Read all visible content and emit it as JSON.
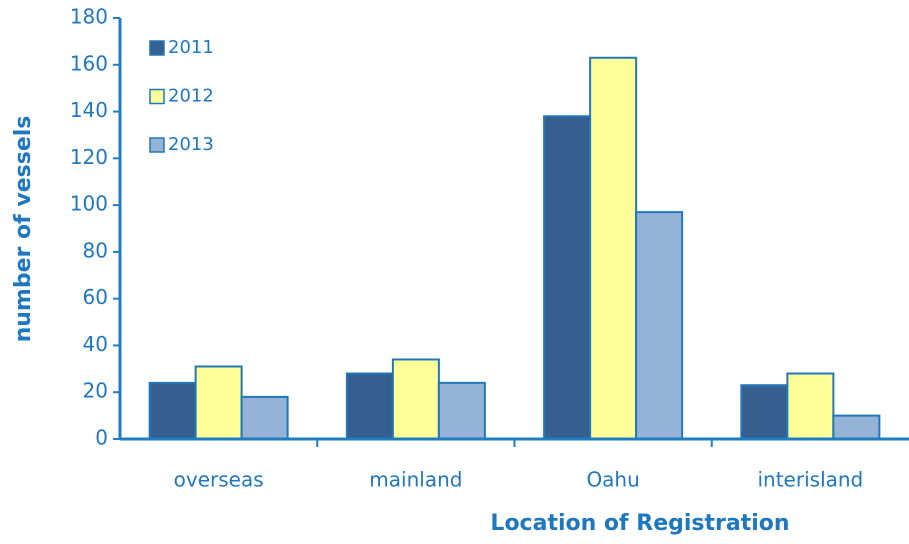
{
  "chart_data": {
    "type": "bar",
    "xlabel": "Location of Registration",
    "ylabel": "number of vessels",
    "categories": [
      "overseas",
      "mainland",
      "Oahu",
      "interisland"
    ],
    "series": [
      {
        "name": "2011",
        "color": "#355f8f",
        "values": [
          24,
          28,
          138,
          23
        ]
      },
      {
        "name": "2012",
        "color": "#ffff99",
        "values": [
          31,
          34,
          163,
          28
        ]
      },
      {
        "name": "2013",
        "color": "#95b3d7",
        "values": [
          18,
          24,
          97,
          10
        ]
      }
    ],
    "ylim": [
      0,
      180
    ],
    "yticks": [
      0,
      20,
      40,
      60,
      80,
      100,
      120,
      140,
      160,
      180
    ],
    "legend": "upper left"
  }
}
